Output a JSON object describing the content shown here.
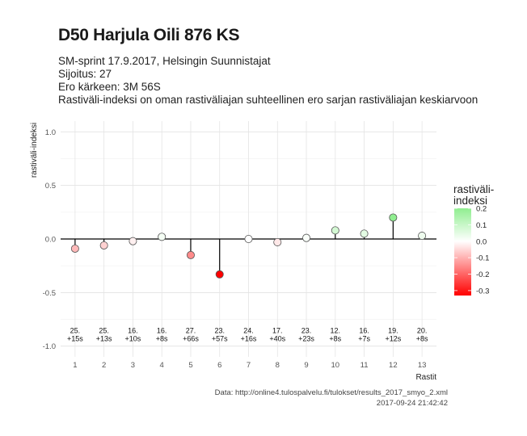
{
  "header": {
    "title": "D50 Harjula Oili 876 KS",
    "subtitle_lines": [
      "SM-sprint 17.9.2017, Helsingin Suunnistajat",
      "Sijoitus: 27",
      "Ero kärkeen: 3M 56S",
      "Rastiväli-indeksi on oman rastiväliajan suhteellinen ero sarjan rastiväliajan keskiarvoon"
    ]
  },
  "footer": {
    "source": "Data: http://online4.tulospalvelu.fi/tulokset/results_2017_smyo_2.xml",
    "timestamp": "2017-09-24 21:42:42"
  },
  "legend": {
    "title_line1": "rastiväli-",
    "title_line2": "indeksi",
    "ticks": [
      "0.2",
      "0.1",
      "0.0",
      "-0.1",
      "-0.2",
      "-0.3"
    ],
    "tick_values": [
      0.2,
      0.1,
      0.0,
      -0.1,
      -0.2,
      -0.3
    ],
    "range": [
      -0.33,
      0.2
    ],
    "colors": {
      "high": "#90ee90",
      "mid": "#ffffff",
      "low": "#ff0000"
    }
  },
  "chart_data": {
    "type": "lollipop",
    "x": [
      1,
      2,
      3,
      4,
      5,
      6,
      7,
      8,
      9,
      10,
      11,
      12,
      13
    ],
    "values": [
      -0.09,
      -0.06,
      -0.02,
      0.02,
      -0.15,
      -0.33,
      0.0,
      -0.03,
      0.01,
      0.08,
      0.05,
      0.2,
      0.03
    ],
    "annotations": [
      [
        "25.",
        "+15s"
      ],
      [
        "25.",
        "+13s"
      ],
      [
        "16.",
        "+10s"
      ],
      [
        "16.",
        "+8s"
      ],
      [
        "27.",
        "+66s"
      ],
      [
        "23.",
        "+57s"
      ],
      [
        "24.",
        "+16s"
      ],
      [
        "17.",
        "+40s"
      ],
      [
        "23.",
        "+23s"
      ],
      [
        "12.",
        "+8s"
      ],
      [
        "16.",
        "+7s"
      ],
      [
        "19.",
        "+12s"
      ],
      [
        "20.",
        "+8s"
      ]
    ],
    "xlabel": "Rastit",
    "ylabel": "rastiväli-indeksi",
    "ylim": [
      -1.0,
      1.0
    ],
    "yticks": [
      "1.0",
      "0.5",
      "0.0",
      "-0.5",
      "-1.0"
    ],
    "ytick_values": [
      1.0,
      0.5,
      0.0,
      -0.5,
      -1.0
    ],
    "xlim": [
      0.5,
      13.5
    ],
    "grid": true,
    "color_scale": "white to green for positive, white to red for negative",
    "legend_position": "right"
  }
}
